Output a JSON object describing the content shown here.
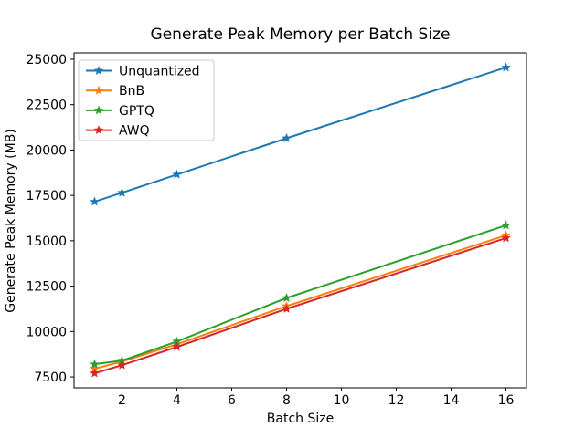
{
  "window": {
    "background": "#ffffff"
  },
  "chart_data": {
    "type": "line",
    "title": "Generate Peak Memory per Batch Size",
    "xlabel": "Batch Size",
    "ylabel": "Generate Peak Memory (MB)",
    "x": [
      1,
      2,
      4,
      8,
      16
    ],
    "series": [
      {
        "name": "Unquantized",
        "color": "#1f77b4",
        "marker": "star",
        "values": [
          17150,
          17650,
          18650,
          20650,
          24550
        ]
      },
      {
        "name": "BnB",
        "color": "#ff7f0e",
        "marker": "star",
        "values": [
          7950,
          8350,
          9300,
          11400,
          15300
        ]
      },
      {
        "name": "GPTQ",
        "color": "#2ca02c",
        "marker": "star",
        "values": [
          8200,
          8400,
          9450,
          11850,
          15850
        ]
      },
      {
        "name": "AWQ",
        "color": "#d62728",
        "marker": "star",
        "values": [
          7700,
          8150,
          9150,
          11250,
          15150
        ]
      }
    ],
    "xticks": [
      2,
      4,
      6,
      8,
      10,
      12,
      14,
      16
    ],
    "yticks": [
      7500,
      10000,
      12500,
      15000,
      17500,
      20000,
      22500,
      25000
    ],
    "xlim": [
      0.25,
      16.75
    ],
    "ylim": [
      6900,
      25350
    ],
    "grid": false,
    "legend_position": "upper-left",
    "axis_color": "#000000",
    "text_color": "#000000",
    "legend_border_color": "#cccccc",
    "legend_background": "#ffffff"
  }
}
